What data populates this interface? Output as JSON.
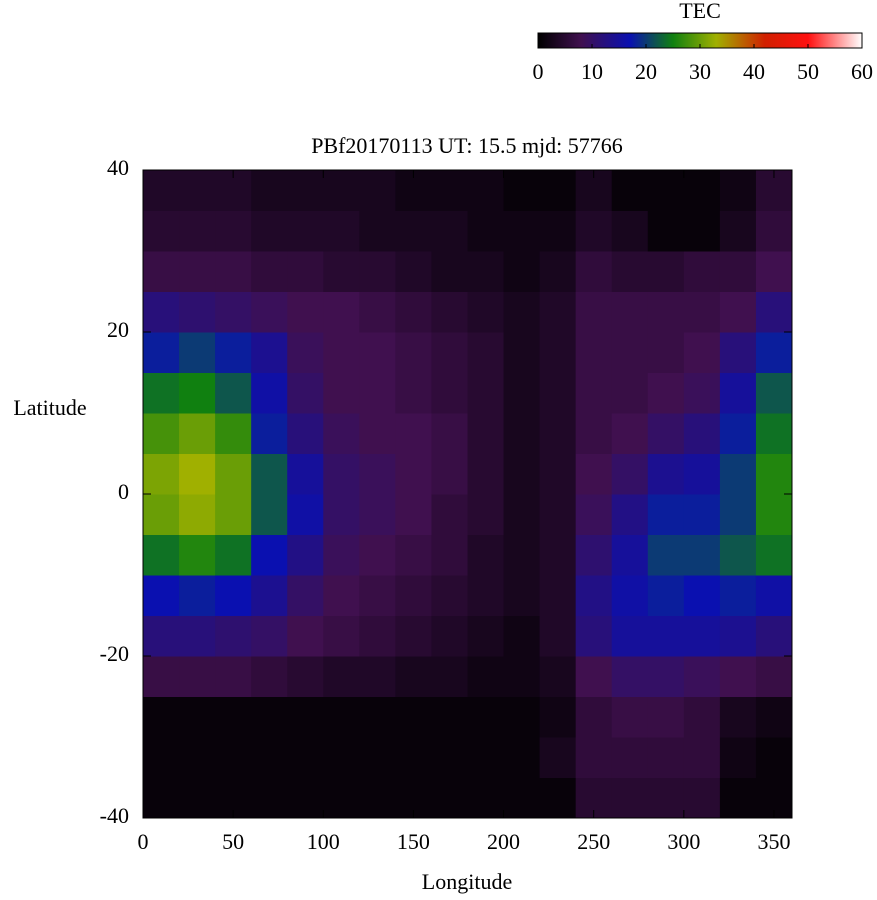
{
  "chart_data": {
    "type": "heatmap",
    "title": "PBf20170113  UT: 15.5  mjd: 57766",
    "xlabel": "Longitude",
    "ylabel": "Latitude",
    "colorbar_label": "TEC",
    "x": [
      10,
      30,
      50,
      70,
      90,
      110,
      130,
      150,
      170,
      190,
      210,
      230,
      250,
      270,
      290,
      310,
      330,
      350
    ],
    "y": [
      -37.5,
      -32.5,
      -27.5,
      -22.5,
      -17.5,
      -12.5,
      -7.5,
      -2.5,
      2.5,
      7.5,
      12.5,
      17.5,
      22.5,
      27.5,
      32.5,
      37.5
    ],
    "z": [
      [
        1,
        1,
        1,
        1,
        1,
        1,
        1,
        1,
        1,
        1,
        1,
        1,
        5,
        5,
        5,
        5,
        1,
        1
      ],
      [
        1,
        1,
        1,
        1,
        1,
        1,
        1,
        1,
        1,
        1,
        1,
        3,
        6,
        6,
        6,
        6,
        2,
        1
      ],
      [
        1,
        1,
        1,
        1,
        1,
        1,
        1,
        1,
        1,
        1,
        1,
        2,
        6,
        7,
        7,
        6,
        3,
        2
      ],
      [
        7,
        7,
        7,
        6,
        5,
        4,
        4,
        3,
        3,
        2,
        2,
        3,
        8,
        10,
        10,
        9,
        8,
        7
      ],
      [
        12,
        12,
        11,
        10,
        8,
        7,
        6,
        5,
        4,
        3,
        2,
        4,
        12,
        15,
        15,
        15,
        14,
        12
      ],
      [
        17,
        18,
        17,
        14,
        10,
        8,
        7,
        6,
        5,
        4,
        3,
        4,
        13,
        16,
        18,
        17,
        18,
        16
      ],
      [
        24,
        26,
        24,
        17,
        13,
        9,
        8,
        7,
        6,
        4,
        3,
        4,
        11,
        15,
        20,
        20,
        22,
        24
      ],
      [
        30,
        32,
        30,
        22,
        16,
        10,
        9,
        8,
        6,
        5,
        3,
        4,
        9,
        13,
        18,
        18,
        20,
        26
      ],
      [
        31,
        33,
        30,
        22,
        15,
        10,
        9,
        8,
        7,
        5,
        3,
        4,
        8,
        10,
        14,
        15,
        20,
        26
      ],
      [
        28,
        30,
        27,
        18,
        12,
        9,
        8,
        8,
        7,
        5,
        3,
        4,
        7,
        8,
        10,
        12,
        18,
        24
      ],
      [
        24,
        25,
        22,
        16,
        10,
        8,
        8,
        7,
        6,
        5,
        3,
        4,
        7,
        7,
        8,
        9,
        15,
        22
      ],
      [
        18,
        20,
        18,
        14,
        9,
        8,
        8,
        7,
        6,
        5,
        3,
        4,
        7,
        7,
        7,
        8,
        12,
        18
      ],
      [
        12,
        11,
        10,
        9,
        8,
        8,
        7,
        6,
        5,
        4,
        3,
        4,
        7,
        7,
        7,
        7,
        8,
        12
      ],
      [
        7,
        7,
        7,
        6,
        6,
        5,
        5,
        4,
        3,
        3,
        2,
        3,
        6,
        5,
        5,
        6,
        6,
        8
      ],
      [
        5,
        5,
        5,
        4,
        4,
        4,
        3,
        3,
        3,
        2,
        2,
        2,
        4,
        3,
        1,
        1,
        3,
        6
      ],
      [
        4,
        4,
        4,
        3,
        3,
        3,
        3,
        2,
        2,
        2,
        1,
        1,
        3,
        1,
        1,
        1,
        2,
        5
      ]
    ],
    "xlim": [
      0,
      360
    ],
    "ylim": [
      -40,
      40
    ],
    "xticks": [
      0,
      50,
      100,
      150,
      200,
      250,
      300,
      350
    ],
    "yticks": [
      -40,
      -20,
      0,
      20,
      40
    ],
    "clim": [
      0,
      60
    ],
    "cticks": [
      0,
      10,
      20,
      30,
      40,
      50,
      60
    ],
    "colormap": [
      [
        0,
        "#000000"
      ],
      [
        8,
        "#40104f"
      ],
      [
        17,
        "#0a10b0"
      ],
      [
        25,
        "#108010"
      ],
      [
        33,
        "#a0b000"
      ],
      [
        42,
        "#d02000"
      ],
      [
        50,
        "#ff1010"
      ],
      [
        60,
        "#ffffff"
      ]
    ]
  }
}
